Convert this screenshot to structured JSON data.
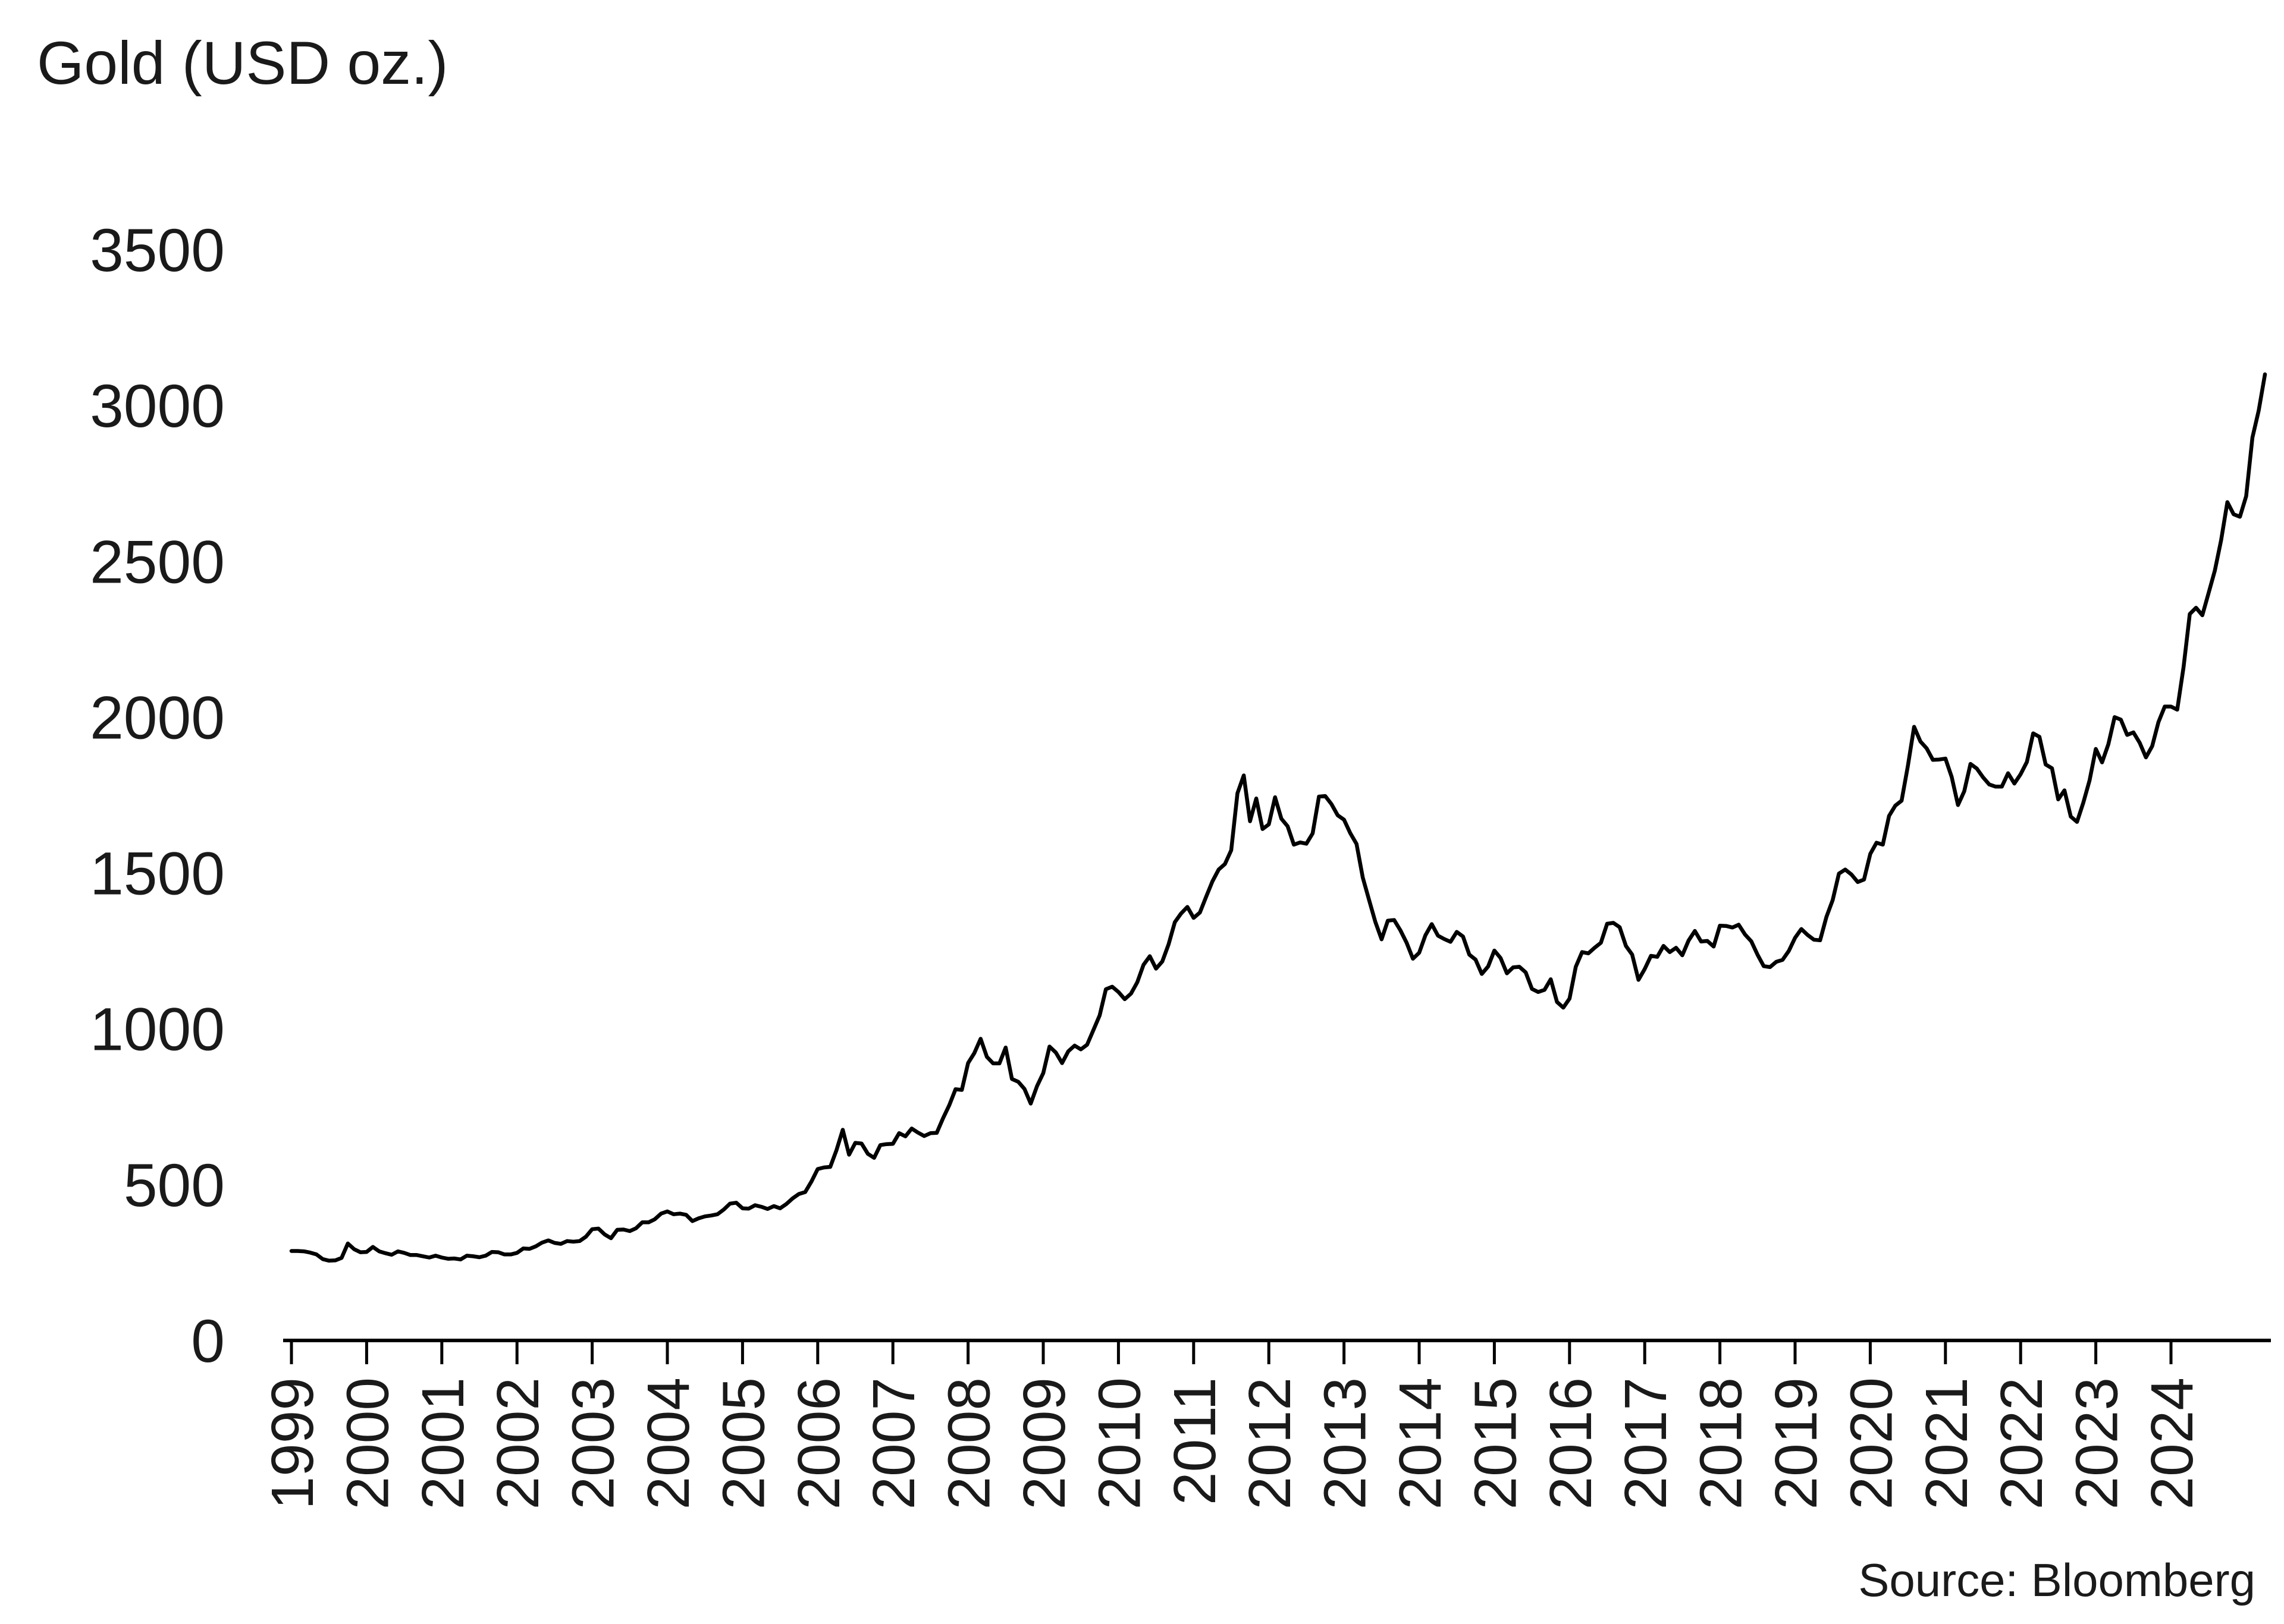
{
  "title": "Gold (USD oz.)",
  "source_label": "Source: Bloomberg",
  "colors": {
    "line": "#000000",
    "axis": "#000000",
    "text": "#1a1a1a",
    "background": "#ffffff"
  },
  "chart_data": {
    "type": "line",
    "title": "Gold (USD oz.)",
    "series_name": "Gold spot price (USD per ounce)",
    "source_label": "Source: Bloomberg",
    "xlabel": "",
    "ylabel": "",
    "x_start_year": 1999,
    "x_interval": "monthly",
    "x_tick_labels": [
      "1999",
      "2000",
      "2001",
      "2002",
      "2003",
      "2004",
      "2005",
      "2006",
      "2007",
      "2008",
      "2009",
      "2010",
      "2011",
      "2012",
      "2013",
      "2014",
      "2015",
      "2016",
      "2017",
      "2018",
      "2019",
      "2020",
      "2021",
      "2022",
      "2023",
      "2024"
    ],
    "y_ticks": [
      0,
      500,
      1000,
      1500,
      2000,
      2500,
      3000,
      3500
    ],
    "ylim": [
      0,
      3500
    ],
    "grid": false,
    "legend": "none",
    "values": [
      287,
      287,
      286,
      282,
      276,
      261,
      256,
      257,
      265,
      311,
      293,
      283,
      284,
      300,
      286,
      280,
      275,
      286,
      281,
      274,
      274,
      270,
      266,
      272,
      266,
      262,
      263,
      260,
      272,
      270,
      267,
      272,
      284,
      283,
      276,
      276,
      281,
      295,
      294,
      302,
      314,
      321,
      313,
      310,
      319,
      317,
      319,
      333,
      357,
      359,
      340,
      328,
      355,
      356,
      351,
      360,
      379,
      379,
      389,
      407,
      414,
      405,
      407,
      403,
      383,
      392,
      398,
      401,
      405,
      420,
      439,
      442,
      424,
      423,
      434,
      429,
      422,
      431,
      424,
      438,
      456,
      470,
      476,
      510,
      550,
      555,
      557,
      611,
      676,
      596,
      634,
      632,
      599,
      586,
      627,
      630,
      631,
      665,
      655,
      680,
      667,
      656,
      665,
      666,
      713,
      755,
      806,
      804,
      890,
      922,
      968,
      910,
      889,
      889,
      940,
      839,
      830,
      807,
      760,
      816,
      858,
      943,
      924,
      890,
      928,
      946,
      934,
      949,
      996,
      1043,
      1127,
      1135,
      1118,
      1095,
      1113,
      1149,
      1205,
      1233,
      1193,
      1216,
      1271,
      1342,
      1370,
      1391,
      1356,
      1373,
      1424,
      1473,
      1511,
      1529,
      1573,
      1756,
      1813,
      1666,
      1739,
      1641,
      1656,
      1743,
      1674,
      1650,
      1591,
      1598,
      1594,
      1627,
      1745,
      1747,
      1721,
      1685,
      1671,
      1628,
      1593,
      1485,
      1414,
      1343,
      1287,
      1347,
      1349,
      1316,
      1276,
      1225,
      1244,
      1300,
      1336,
      1299,
      1288,
      1279,
      1311,
      1296,
      1238,
      1222,
      1176,
      1200,
      1251,
      1227,
      1178,
      1197,
      1199,
      1181,
      1128,
      1118,
      1125,
      1159,
      1086,
      1068,
      1097,
      1199,
      1246,
      1242,
      1260,
      1276,
      1337,
      1340,
      1326,
      1266,
      1238,
      1157,
      1192,
      1234,
      1231,
      1266,
      1246,
      1260,
      1236,
      1283,
      1314,
      1280,
      1282,
      1264,
      1331,
      1330,
      1325,
      1334,
      1303,
      1281,
      1238,
      1201,
      1198,
      1215,
      1221,
      1250,
      1292,
      1320,
      1301,
      1286,
      1284,
      1359,
      1413,
      1498,
      1511,
      1495,
      1471,
      1479,
      1561,
      1597,
      1591,
      1683,
      1716,
      1732,
      1843,
      1969,
      1922,
      1900,
      1863,
      1864,
      1867,
      1808,
      1718,
      1762,
      1850,
      1835,
      1807,
      1784,
      1777,
      1777,
      1820,
      1787,
      1817,
      1856,
      1948,
      1937,
      1848,
      1836,
      1736,
      1765,
      1681,
      1664,
      1725,
      1797,
      1898,
      1855,
      1913,
      2000,
      1992,
      1943,
      1951,
      1918,
      1871,
      1907,
      1984,
      2034,
      2034,
      2024,
      2160,
      2331,
      2351,
      2327,
      2398,
      2470,
      2568,
      2690,
      2651,
      2643,
      2709,
      2897,
      2984,
      3100
    ]
  }
}
